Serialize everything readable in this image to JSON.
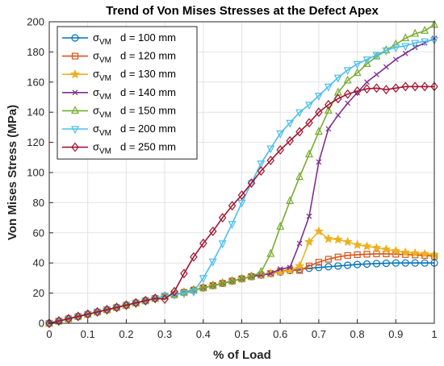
{
  "chart_data": {
    "type": "line",
    "title": "Trend of Von Mises Stresses at the Defect Apex",
    "xlabel": "% of Load",
    "ylabel": "Von Mises Stress (MPa)",
    "xlim": [
      0,
      1
    ],
    "ylim": [
      0,
      200
    ],
    "xticks": [
      0,
      0.1,
      0.2,
      0.3,
      0.4,
      0.5,
      0.6,
      0.7,
      0.8,
      0.9,
      1
    ],
    "xtick_labels": [
      "0",
      "0.1",
      "0.2",
      "0.3",
      "0.4",
      "0.5",
      "0.6",
      "0.7",
      "0.8",
      "0.9",
      "1"
    ],
    "yticks": [
      0,
      20,
      40,
      60,
      80,
      100,
      120,
      140,
      160,
      180,
      200
    ],
    "ytick_labels": [
      "0",
      "20",
      "40",
      "60",
      "80",
      "100",
      "120",
      "140",
      "160",
      "180",
      "200"
    ],
    "grid": true,
    "legend_position": "top-left",
    "legend_symbol": "σ",
    "legend_subscript": "VM",
    "series": [
      {
        "name": "d = 100 mm",
        "color": "#0072BD",
        "marker": "circle",
        "x": [
          0,
          0.025,
          0.05,
          0.075,
          0.1,
          0.125,
          0.15,
          0.175,
          0.2,
          0.225,
          0.25,
          0.275,
          0.3,
          0.325,
          0.35,
          0.375,
          0.4,
          0.425,
          0.45,
          0.475,
          0.5,
          0.525,
          0.55,
          0.575,
          0.6,
          0.625,
          0.65,
          0.675,
          0.7,
          0.725,
          0.75,
          0.775,
          0.8,
          0.825,
          0.85,
          0.875,
          0.9,
          0.925,
          0.95,
          0.975,
          1
        ],
        "y": [
          0,
          1.5,
          3,
          4.5,
          6,
          7.5,
          9,
          10.5,
          12,
          13.5,
          15,
          16.5,
          18,
          19,
          20.5,
          22,
          23.5,
          25,
          26.5,
          28,
          29.5,
          31,
          32,
          33,
          34,
          35,
          35.8,
          36.5,
          37,
          37.5,
          38,
          38.5,
          39,
          39.3,
          39.6,
          39.8,
          40,
          40,
          40,
          40,
          40
        ]
      },
      {
        "name": "d = 120 mm",
        "color": "#D95319",
        "marker": "square",
        "x": [
          0,
          0.025,
          0.05,
          0.075,
          0.1,
          0.125,
          0.15,
          0.175,
          0.2,
          0.225,
          0.25,
          0.275,
          0.3,
          0.325,
          0.35,
          0.375,
          0.4,
          0.425,
          0.45,
          0.475,
          0.5,
          0.525,
          0.55,
          0.575,
          0.6,
          0.625,
          0.65,
          0.675,
          0.7,
          0.725,
          0.75,
          0.775,
          0.8,
          0.825,
          0.85,
          0.875,
          0.9,
          0.925,
          0.95,
          0.975,
          1
        ],
        "y": [
          0,
          1.5,
          3,
          4.5,
          6,
          7.5,
          9,
          10.5,
          12,
          13.5,
          15,
          16.5,
          18,
          19,
          20.5,
          22,
          23.5,
          25,
          26.5,
          28,
          29.5,
          31,
          32,
          33,
          34.5,
          35.5,
          35,
          38,
          40.5,
          42.5,
          44,
          45,
          45.5,
          45.8,
          46,
          46,
          45.8,
          45.6,
          45.3,
          45,
          44.5
        ]
      },
      {
        "name": "d = 130 mm",
        "color": "#EDB120",
        "marker": "star",
        "x": [
          0,
          0.025,
          0.05,
          0.075,
          0.1,
          0.125,
          0.15,
          0.175,
          0.2,
          0.225,
          0.25,
          0.275,
          0.3,
          0.325,
          0.35,
          0.375,
          0.4,
          0.425,
          0.45,
          0.475,
          0.5,
          0.525,
          0.55,
          0.575,
          0.6,
          0.625,
          0.65,
          0.675,
          0.7,
          0.725,
          0.75,
          0.775,
          0.8,
          0.825,
          0.85,
          0.875,
          0.9,
          0.925,
          0.95,
          0.975,
          1
        ],
        "y": [
          0,
          1.5,
          3,
          4.5,
          6,
          7.5,
          9,
          10.5,
          12,
          13.5,
          15,
          16.5,
          18,
          19,
          20.5,
          22,
          23.5,
          25,
          26.5,
          28,
          29.5,
          31,
          32,
          33,
          34,
          35,
          38,
          54,
          61,
          56,
          55.5,
          54,
          52,
          51,
          50,
          49,
          48,
          47,
          46.5,
          46,
          45.5
        ]
      },
      {
        "name": "d = 140 mm",
        "color": "#7E2F8E",
        "marker": "x",
        "x": [
          0,
          0.025,
          0.05,
          0.075,
          0.1,
          0.125,
          0.15,
          0.175,
          0.2,
          0.225,
          0.25,
          0.275,
          0.3,
          0.325,
          0.35,
          0.375,
          0.4,
          0.425,
          0.45,
          0.475,
          0.5,
          0.525,
          0.55,
          0.575,
          0.6,
          0.625,
          0.65,
          0.675,
          0.7,
          0.725,
          0.75,
          0.775,
          0.8,
          0.825,
          0.85,
          0.875,
          0.9,
          0.925,
          0.95,
          0.975,
          1
        ],
        "y": [
          0,
          1.5,
          3,
          4.5,
          6,
          7.5,
          9,
          10.5,
          12,
          13.5,
          15,
          16.5,
          18,
          19,
          20.5,
          22,
          23.5,
          25,
          26.5,
          28,
          29.5,
          31,
          32,
          33,
          36,
          37,
          53,
          71,
          107,
          129,
          138,
          146,
          153,
          160,
          165,
          170,
          175,
          179,
          183,
          186,
          189
        ]
      },
      {
        "name": "d = 150 mm",
        "color": "#77AC30",
        "marker": "triangle-up",
        "x": [
          0,
          0.025,
          0.05,
          0.075,
          0.1,
          0.125,
          0.15,
          0.175,
          0.2,
          0.225,
          0.25,
          0.275,
          0.3,
          0.325,
          0.35,
          0.375,
          0.4,
          0.425,
          0.45,
          0.475,
          0.5,
          0.525,
          0.55,
          0.575,
          0.6,
          0.625,
          0.65,
          0.675,
          0.7,
          0.725,
          0.75,
          0.775,
          0.8,
          0.825,
          0.85,
          0.875,
          0.9,
          0.925,
          0.95,
          0.975,
          1
        ],
        "y": [
          0,
          1.5,
          3,
          4.5,
          6,
          7.5,
          9,
          10.5,
          12,
          13.5,
          15,
          16.5,
          18,
          19,
          20.5,
          22,
          23.5,
          25,
          26.5,
          28,
          29.5,
          31,
          34,
          46,
          64,
          81,
          97,
          112,
          127,
          141,
          153,
          161,
          166,
          172,
          177,
          181,
          185,
          189,
          192,
          194,
          198
        ]
      },
      {
        "name": "d = 200 mm",
        "color": "#4DBEEE",
        "marker": "triangle-down",
        "x": [
          0,
          0.025,
          0.05,
          0.075,
          0.1,
          0.125,
          0.15,
          0.175,
          0.2,
          0.225,
          0.25,
          0.275,
          0.3,
          0.325,
          0.35,
          0.375,
          0.4,
          0.425,
          0.45,
          0.475,
          0.5,
          0.525,
          0.55,
          0.575,
          0.6,
          0.625,
          0.65,
          0.675,
          0.7,
          0.725,
          0.75,
          0.775,
          0.8,
          0.825,
          0.85,
          0.875,
          0.9,
          0.925,
          0.95,
          0.975,
          1
        ],
        "y": [
          0,
          1.5,
          3,
          4.5,
          6,
          7.5,
          9,
          10.5,
          12,
          13.5,
          15,
          16.5,
          18,
          19,
          20,
          21,
          30,
          41,
          53,
          66,
          80,
          93,
          106,
          116,
          126,
          133,
          140,
          145,
          151,
          157,
          163,
          168,
          172,
          175,
          178,
          181,
          183,
          184,
          186,
          187,
          188
        ]
      },
      {
        "name": "d = 250 mm",
        "color": "#A2142F",
        "marker": "diamond",
        "x": [
          0,
          0.025,
          0.05,
          0.075,
          0.1,
          0.125,
          0.15,
          0.175,
          0.2,
          0.225,
          0.25,
          0.275,
          0.3,
          0.325,
          0.35,
          0.375,
          0.4,
          0.425,
          0.45,
          0.475,
          0.5,
          0.525,
          0.55,
          0.575,
          0.6,
          0.625,
          0.65,
          0.675,
          0.7,
          0.725,
          0.75,
          0.775,
          0.8,
          0.825,
          0.85,
          0.875,
          0.9,
          0.925,
          0.95,
          0.975,
          1
        ],
        "y": [
          0,
          1.5,
          3,
          4.5,
          6,
          7.5,
          9,
          10.5,
          12,
          13.5,
          15,
          16.5,
          16,
          21,
          33,
          44,
          53,
          61,
          70,
          78,
          85,
          93,
          101,
          108,
          115,
          121,
          127,
          133,
          140,
          145,
          149,
          152,
          154,
          155.5,
          156,
          155,
          156,
          157,
          157,
          157,
          157
        ]
      }
    ]
  }
}
